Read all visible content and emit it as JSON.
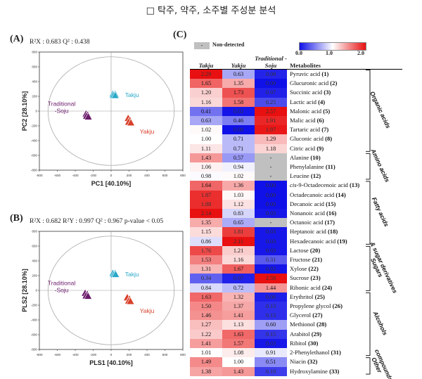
{
  "title": "□ 탁주, 약주, 소주별 주성분 분석",
  "panel_a": {
    "label": "(A)",
    "metrics": "R²X : 0.683  Q² : 0.438"
  },
  "panel_b": {
    "label": "(B)",
    "metrics": "R²X : 0.682  R²Y : 0.997  Q² : 0.967  p-value < 0.05"
  },
  "panel_c": {
    "label": "(C)",
    "nd_label": "Non-detected",
    "nd_symbol": "-"
  },
  "colors": {
    "takju": "#29a8c8",
    "yakju": "#d8402a",
    "soju": "#6a1a6a",
    "low": "#1010e8",
    "mid": "#ffffff",
    "high": "#e81010",
    "nd": "#c0c0c0"
  },
  "chart_data": [
    {
      "type": "scatter",
      "title": "",
      "xlabel": "PC1 [40.10%]",
      "ylabel": "PC2 [28.10%]",
      "xlim": [
        -800,
        800
      ],
      "ylim": [
        -800,
        800
      ],
      "xticks": [
        "-800",
        "-600",
        "-400",
        "-200",
        "0",
        "200",
        "400",
        "600",
        "800"
      ],
      "yticks": [
        "-800",
        "-600",
        "-400",
        "-200",
        "0",
        "200",
        "400",
        "600",
        "800"
      ],
      "series": [
        {
          "name": "Takju",
          "marker": "triangle",
          "points": [
            [
              20,
              230
            ],
            [
              45,
              230
            ],
            [
              25,
              210
            ],
            [
              45,
              210
            ]
          ]
        },
        {
          "name": "Yakju",
          "marker": "triangle",
          "points": [
            [
              190,
              -100
            ],
            [
              210,
              -130
            ],
            [
              195,
              -150
            ],
            [
              220,
              -160
            ]
          ]
        },
        {
          "name": "Traditional -Soju",
          "marker": "triangle",
          "points": [
            [
              -280,
              -40
            ],
            [
              -260,
              -55
            ],
            [
              -275,
              -70
            ],
            [
              -255,
              -80
            ]
          ]
        }
      ]
    },
    {
      "type": "scatter",
      "title": "",
      "xlabel": "PLS1 [40.10%]",
      "ylabel": "PLS2 [28.10%]",
      "xlim": [
        -800,
        800
      ],
      "ylim": [
        -800,
        800
      ],
      "xticks": [
        "-800",
        "-600",
        "-400",
        "-200",
        "0",
        "200",
        "400",
        "600",
        "800"
      ],
      "yticks": [
        "-800",
        "-600",
        "-400",
        "-200",
        "0",
        "200",
        "400",
        "600",
        "800"
      ],
      "series": [
        {
          "name": "Takju",
          "marker": "triangle",
          "points": [
            [
              20,
              230
            ],
            [
              45,
              230
            ],
            [
              30,
              210
            ],
            [
              50,
              215
            ]
          ]
        },
        {
          "name": "Yakju",
          "marker": "triangle",
          "points": [
            [
              180,
              -100
            ],
            [
              205,
              -120
            ],
            [
              195,
              -145
            ],
            [
              215,
              -150
            ]
          ]
        },
        {
          "name": "Traditional -Soju",
          "marker": "triangle",
          "points": [
            [
              -290,
              -40
            ],
            [
              -265,
              -55
            ],
            [
              -280,
              -75
            ],
            [
              -258,
              -80
            ]
          ]
        }
      ]
    },
    {
      "type": "heatmap",
      "title": "",
      "color_scale": {
        "min": "0.0",
        "mid": "1.0",
        "max": "2.0"
      },
      "columns": [
        "Takju",
        "Yakju",
        "Traditional -Soju"
      ],
      "metabolite_header": "Metabolites",
      "groups": [
        {
          "name": "Organic acids",
          "rows": 9
        },
        {
          "name": "Amino acids",
          "rows": 3
        },
        {
          "name": "Fatty acids",
          "rows": 7
        },
        {
          "name": "Sugars & sugar derivatives",
          "rows": 5
        },
        {
          "name": "Alcohols",
          "rows": 7
        },
        {
          "name": "Other compounds",
          "rows": 2
        }
      ],
      "rows": [
        {
          "name": "Pyruvic acid",
          "num": "1",
          "italic_prefix": "",
          "values": [
            "2.29",
            "0.63",
            "0.08"
          ]
        },
        {
          "name": "Glucuronic acid",
          "num": "2",
          "italic_prefix": "",
          "values": [
            "1.65",
            "1.35",
            "0.00"
          ]
        },
        {
          "name": "Succinic acid",
          "num": "3",
          "italic_prefix": "",
          "values": [
            "1.20",
            "1.73",
            "0.07"
          ]
        },
        {
          "name": "Lactic acid",
          "num": "4",
          "italic_prefix": "",
          "values": [
            "1.16",
            "1.58",
            "0.25"
          ]
        },
        {
          "name": "Malonic acid",
          "num": "5",
          "italic_prefix": "",
          "values": [
            "0.41",
            "0.02",
            "2.57"
          ]
        },
        {
          "name": "Malic acid",
          "num": "6",
          "italic_prefix": "",
          "values": [
            "0.63",
            "0.46",
            "1.91"
          ]
        },
        {
          "name": "Tartaric acid",
          "num": "7",
          "italic_prefix": "",
          "values": [
            "1.02",
            "0.00",
            "1.97"
          ]
        },
        {
          "name": "Gluconic acid",
          "num": "8",
          "italic_prefix": "",
          "values": [
            "1.00",
            "0.71",
            "1.29"
          ]
        },
        {
          "name": "Citric acid",
          "num": "9",
          "italic_prefix": "",
          "values": [
            "1.11",
            "0.71",
            "1.18"
          ]
        },
        {
          "name": "Alanine",
          "num": "10",
          "italic_prefix": "",
          "values": [
            "1.43",
            "0.57",
            "-"
          ]
        },
        {
          "name": "Phenylalanine",
          "num": "11",
          "italic_prefix": "",
          "values": [
            "1.06",
            "0.94",
            "-"
          ]
        },
        {
          "name": "Leucine",
          "num": "12",
          "italic_prefix": "",
          "values": [
            "0.98",
            "1.02",
            "-"
          ]
        },
        {
          "name": "-9-Octadecenoic acid",
          "num": "13",
          "italic_prefix": "cis",
          "values": [
            "1.64",
            "1.36",
            "0.00"
          ]
        },
        {
          "name": "Octadecanoic acid",
          "num": "14",
          "italic_prefix": "",
          "values": [
            "1.87",
            "1.03",
            "0.00"
          ]
        },
        {
          "name": "Decanoic acid",
          "num": "15",
          "italic_prefix": "",
          "values": [
            "1.88",
            "1.12",
            "0.00"
          ]
        },
        {
          "name": "Nonanoic acid",
          "num": "16",
          "italic_prefix": "",
          "values": [
            "2.14",
            "0.83",
            "0.03"
          ]
        },
        {
          "name": "Octanoic acid",
          "num": "17",
          "italic_prefix": "",
          "values": [
            "1.35",
            "0.65",
            "-"
          ]
        },
        {
          "name": "Heptanoic acid",
          "num": "18",
          "italic_prefix": "",
          "values": [
            "1.15",
            "1.81",
            "0.03"
          ]
        },
        {
          "name": "Hexadecanoic acid",
          "num": "19",
          "italic_prefix": "",
          "values": [
            "0.86",
            "2.11",
            "0.03"
          ]
        },
        {
          "name": "Lactose",
          "num": "20",
          "italic_prefix": "",
          "values": [
            "1.76",
            "1.21",
            "0.03"
          ]
        },
        {
          "name": "Fructose",
          "num": "21",
          "italic_prefix": "",
          "values": [
            "1.53",
            "1.16",
            "0.31"
          ]
        },
        {
          "name": "Xylose",
          "num": "22",
          "italic_prefix": "",
          "values": [
            "1.31",
            "1.67",
            "0.02"
          ]
        },
        {
          "name": "Sucrose",
          "num": "23",
          "italic_prefix": "",
          "values": [
            "0.34",
            "0.07",
            "2.58"
          ]
        },
        {
          "name": "Ribonic acid",
          "num": "24",
          "italic_prefix": "",
          "values": [
            "0.84",
            "0.72",
            "1.44"
          ]
        },
        {
          "name": "Erythritol",
          "num": "25",
          "italic_prefix": "",
          "values": [
            "1.63",
            "1.32",
            "0.06"
          ]
        },
        {
          "name": "Propylene glycol",
          "num": "26",
          "italic_prefix": "",
          "values": [
            "1.50",
            "1.37",
            "0.13"
          ]
        },
        {
          "name": "Glycerol",
          "num": "27",
          "italic_prefix": "",
          "values": [
            "1.46",
            "1.41",
            "0.13"
          ]
        },
        {
          "name": "Methionol",
          "num": "28",
          "italic_prefix": "",
          "values": [
            "1.27",
            "1.13",
            "0.60"
          ]
        },
        {
          "name": "Arabitol",
          "num": "29",
          "italic_prefix": "",
          "values": [
            "1.22",
            "1.63",
            "0.15"
          ]
        },
        {
          "name": "Ribitol",
          "num": "30",
          "italic_prefix": "",
          "values": [
            "1.41",
            "1.57",
            "0.03"
          ]
        },
        {
          "name": "2-Phenylethanol",
          "num": "31",
          "italic_prefix": "",
          "values": [
            "1.01",
            "1.08",
            "0.91"
          ]
        },
        {
          "name": "Niacin",
          "num": "32",
          "italic_prefix": "",
          "values": [
            "1.49",
            "1.00",
            "0.51"
          ]
        },
        {
          "name": "Hydroxylamine",
          "num": "33",
          "italic_prefix": "",
          "values": [
            "1.38",
            "1.43",
            "0.19"
          ]
        }
      ]
    }
  ]
}
